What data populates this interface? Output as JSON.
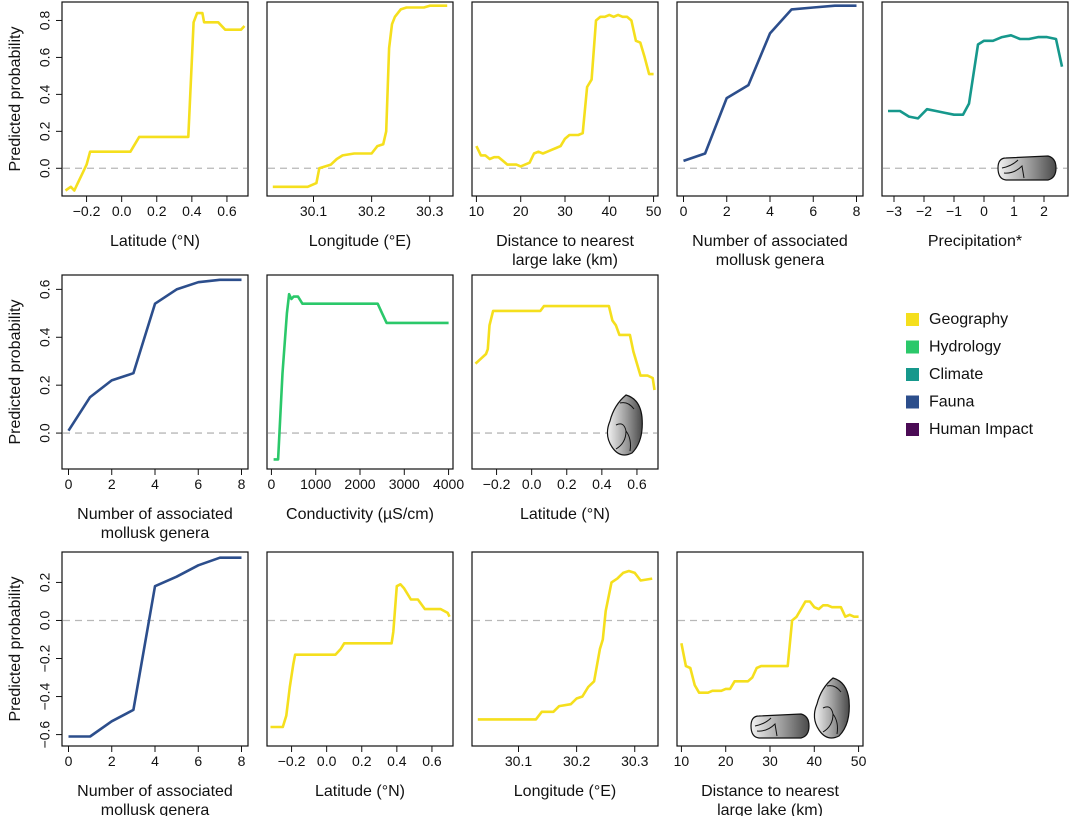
{
  "colors": {
    "Geography": "#F5DF1D",
    "Hydrology": "#2BC86A",
    "Climate": "#16988C",
    "Fauna": "#2C4E8C",
    "Human Impact": "#4B0B55"
  },
  "legend": [
    {
      "label": "Geography",
      "color": "#F5DF1D"
    },
    {
      "label": "Hydrology",
      "color": "#2BC86A"
    },
    {
      "label": "Climate",
      "color": "#16988C"
    },
    {
      "label": "Fauna",
      "color": "#2C4E8C"
    },
    {
      "label": "Human Impact",
      "color": "#4B0B55"
    }
  ],
  "chart_data": [
    {
      "type": "line",
      "row": 0,
      "col": 0,
      "category": "Geography",
      "xlabel": "Latitude (°N)",
      "ylabel": "Predicted probability",
      "xlim": [
        -0.34,
        0.72
      ],
      "ylim": [
        -0.15,
        0.9
      ],
      "xticks": [
        -0.2,
        0.0,
        0.2,
        0.4,
        0.6
      ],
      "xtick_labels": [
        "−0.2",
        "0.0",
        "0.2",
        "0.4",
        "0.6"
      ],
      "yticks": [
        0.0,
        0.2,
        0.4,
        0.6,
        0.8
      ],
      "ytick_labels": [
        "0.0",
        "0.2",
        "0.4",
        "0.6",
        "0.8"
      ],
      "x": [
        -0.32,
        -0.29,
        -0.27,
        -0.25,
        -0.22,
        -0.2,
        -0.18,
        0.05,
        0.1,
        0.38,
        0.41,
        0.43,
        0.46,
        0.47,
        0.55,
        0.59,
        0.68,
        0.7
      ],
      "y": [
        -0.12,
        -0.1,
        -0.12,
        -0.08,
        -0.02,
        0.02,
        0.09,
        0.09,
        0.17,
        0.17,
        0.79,
        0.84,
        0.84,
        0.79,
        0.79,
        0.75,
        0.75,
        0.77
      ],
      "snails": []
    },
    {
      "type": "line",
      "row": 0,
      "col": 1,
      "category": "Geography",
      "xlabel": "Longitude (°E)",
      "ylabel": "",
      "xlim": [
        30.02,
        30.34
      ],
      "ylim": [
        -0.15,
        0.9
      ],
      "xticks": [
        30.1,
        30.2,
        30.3
      ],
      "xtick_labels": [
        "30.1",
        "30.2",
        "30.3"
      ],
      "yticks": [],
      "ytick_labels": [],
      "x": [
        30.03,
        30.09,
        30.105,
        30.11,
        30.13,
        30.14,
        30.15,
        30.17,
        30.2,
        30.21,
        30.22,
        30.225,
        30.23,
        30.235,
        30.24,
        30.25,
        30.26,
        30.29,
        30.3,
        30.33
      ],
      "y": [
        -0.1,
        -0.1,
        -0.08,
        0.0,
        0.02,
        0.05,
        0.07,
        0.08,
        0.08,
        0.12,
        0.13,
        0.2,
        0.65,
        0.78,
        0.82,
        0.86,
        0.87,
        0.87,
        0.88,
        0.88
      ],
      "snails": []
    },
    {
      "type": "line",
      "row": 0,
      "col": 2,
      "category": "Geography",
      "xlabel": "Distance to nearest large lake (km)",
      "ylabel": "",
      "xlim": [
        9,
        51
      ],
      "ylim": [
        -0.15,
        0.9
      ],
      "xticks": [
        10,
        20,
        30,
        40,
        50
      ],
      "xtick_labels": [
        "10",
        "20",
        "30",
        "40",
        "50"
      ],
      "yticks": [],
      "ytick_labels": [],
      "x": [
        10,
        11,
        12,
        13,
        14,
        15,
        16,
        17,
        18,
        19,
        20,
        21,
        22,
        23,
        24,
        25,
        26,
        27,
        28,
        29,
        30,
        31,
        32,
        33,
        34,
        35,
        36,
        37,
        38,
        39,
        40,
        41,
        42,
        43,
        44,
        45,
        46,
        47,
        48,
        49,
        50
      ],
      "y": [
        0.12,
        0.07,
        0.07,
        0.05,
        0.06,
        0.06,
        0.04,
        0.02,
        0.02,
        0.02,
        0.01,
        0.02,
        0.03,
        0.08,
        0.09,
        0.08,
        0.09,
        0.1,
        0.11,
        0.12,
        0.16,
        0.18,
        0.18,
        0.18,
        0.19,
        0.44,
        0.48,
        0.8,
        0.82,
        0.82,
        0.83,
        0.82,
        0.83,
        0.82,
        0.82,
        0.8,
        0.69,
        0.68,
        0.6,
        0.51,
        0.51
      ],
      "snails": []
    },
    {
      "type": "line",
      "row": 0,
      "col": 3,
      "category": "Fauna",
      "xlabel": "Number of associated mollusk genera",
      "ylabel": "",
      "xlim": [
        -0.3,
        8.3
      ],
      "ylim": [
        -0.15,
        0.9
      ],
      "xticks": [
        0,
        2,
        4,
        6,
        8
      ],
      "xtick_labels": [
        "0",
        "2",
        "4",
        "6",
        "8"
      ],
      "yticks": [],
      "ytick_labels": [],
      "x": [
        0,
        1,
        2,
        3,
        4,
        5,
        6,
        7,
        8
      ],
      "y": [
        0.04,
        0.08,
        0.38,
        0.45,
        0.73,
        0.86,
        0.87,
        0.88,
        0.88
      ],
      "snails": []
    },
    {
      "type": "line",
      "row": 0,
      "col": 4,
      "category": "Climate",
      "xlabel": "Precipitation*",
      "ylabel": "",
      "xlim": [
        -3.4,
        2.8
      ],
      "ylim": [
        -0.15,
        0.9
      ],
      "xticks": [
        -3,
        -2,
        -1,
        0,
        1,
        2
      ],
      "xtick_labels": [
        "−3",
        "−2",
        "−1",
        "0",
        "1",
        "2"
      ],
      "yticks": [],
      "ytick_labels": [],
      "x": [
        -3.2,
        -2.8,
        -2.5,
        -2.2,
        -1.9,
        -1.6,
        -1.3,
        -1.0,
        -0.7,
        -0.5,
        -0.2,
        -0.1,
        0.0,
        0.3,
        0.6,
        0.9,
        1.2,
        1.5,
        1.8,
        2.1,
        2.4,
        2.6
      ],
      "y": [
        0.31,
        0.31,
        0.28,
        0.27,
        0.32,
        0.31,
        0.3,
        0.29,
        0.29,
        0.35,
        0.67,
        0.68,
        0.69,
        0.69,
        0.71,
        0.72,
        0.7,
        0.7,
        0.71,
        0.71,
        0.7,
        0.55
      ],
      "snails": [
        "elongated"
      ]
    },
    {
      "type": "line",
      "row": 1,
      "col": 0,
      "category": "Fauna",
      "xlabel": "Number of associated mollusk genera",
      "ylabel": "Predicted probability",
      "xlim": [
        -0.3,
        8.3
      ],
      "ylim": [
        -0.15,
        0.66
      ],
      "xticks": [
        0,
        2,
        4,
        6,
        8
      ],
      "xtick_labels": [
        "0",
        "2",
        "4",
        "6",
        "8"
      ],
      "yticks": [
        0.0,
        0.2,
        0.4,
        0.6
      ],
      "ytick_labels": [
        "0.0",
        "0.2",
        "0.4",
        "0.6"
      ],
      "x": [
        0,
        1,
        2,
        3,
        4,
        5,
        6,
        7,
        8
      ],
      "y": [
        0.01,
        0.15,
        0.22,
        0.25,
        0.54,
        0.6,
        0.63,
        0.64,
        0.64
      ],
      "snails": []
    },
    {
      "type": "line",
      "row": 1,
      "col": 1,
      "category": "Hydrology",
      "xlabel": "Conductivity (µS/cm)",
      "ylabel": "",
      "xlim": [
        -100,
        4100
      ],
      "ylim": [
        -0.15,
        0.66
      ],
      "xticks": [
        0,
        1000,
        2000,
        3000,
        4000
      ],
      "xtick_labels": [
        "0",
        "1000",
        "2000",
        "3000",
        "4000"
      ],
      "yticks": [],
      "ytick_labels": [],
      "x": [
        50,
        150,
        250,
        350,
        400,
        450,
        500,
        600,
        700,
        800,
        1000,
        1500,
        2000,
        2400,
        2500,
        2600,
        3000,
        4000
      ],
      "y": [
        -0.11,
        -0.11,
        0.25,
        0.5,
        0.58,
        0.56,
        0.57,
        0.57,
        0.54,
        0.54,
        0.54,
        0.54,
        0.54,
        0.54,
        0.5,
        0.46,
        0.46,
        0.46
      ],
      "snails": []
    },
    {
      "type": "line",
      "row": 1,
      "col": 2,
      "category": "Geography",
      "xlabel": "Latitude (°N)",
      "ylabel": "",
      "xlim": [
        -0.34,
        0.72
      ],
      "ylim": [
        -0.15,
        0.66
      ],
      "xticks": [
        -0.2,
        0.0,
        0.2,
        0.4,
        0.6
      ],
      "xtick_labels": [
        "−0.2",
        "0.0",
        "0.2",
        "0.4",
        "0.6"
      ],
      "yticks": [],
      "ytick_labels": [],
      "x": [
        -0.32,
        -0.29,
        -0.26,
        -0.25,
        -0.24,
        -0.22,
        -0.2,
        0.05,
        0.07,
        0.44,
        0.46,
        0.48,
        0.5,
        0.56,
        0.58,
        0.62,
        0.66,
        0.69,
        0.7
      ],
      "y": [
        0.29,
        0.31,
        0.33,
        0.35,
        0.45,
        0.51,
        0.51,
        0.51,
        0.53,
        0.53,
        0.47,
        0.45,
        0.41,
        0.41,
        0.34,
        0.24,
        0.24,
        0.23,
        0.18
      ],
      "snails": [
        "globose"
      ]
    },
    {
      "type": "line",
      "row": 2,
      "col": 0,
      "category": "Fauna",
      "xlabel": "Number of associated mollusk genera",
      "ylabel": "Predicted probability",
      "xlim": [
        -0.3,
        8.3
      ],
      "ylim": [
        -0.66,
        0.36
      ],
      "xticks": [
        0,
        2,
        4,
        6,
        8
      ],
      "xtick_labels": [
        "0",
        "2",
        "4",
        "6",
        "8"
      ],
      "yticks": [
        -0.6,
        -0.4,
        -0.2,
        0.0,
        0.2
      ],
      "ytick_labels": [
        "−0.6",
        "−0.4",
        "−0.2",
        "0.0",
        "0.2"
      ],
      "x": [
        0,
        1,
        2,
        3,
        4,
        5,
        6,
        7,
        8
      ],
      "y": [
        -0.61,
        -0.61,
        -0.53,
        -0.47,
        0.18,
        0.23,
        0.29,
        0.33,
        0.33
      ],
      "snails": []
    },
    {
      "type": "line",
      "row": 2,
      "col": 1,
      "category": "Geography",
      "xlabel": "Latitude (°N)",
      "ylabel": "",
      "xlim": [
        -0.34,
        0.72
      ],
      "ylim": [
        -0.66,
        0.36
      ],
      "xticks": [
        -0.2,
        0.0,
        0.2,
        0.4,
        0.6
      ],
      "xtick_labels": [
        "−0.2",
        "0.0",
        "0.2",
        "0.4",
        "0.6"
      ],
      "yticks": [],
      "ytick_labels": [],
      "x": [
        -0.32,
        -0.25,
        -0.23,
        -0.21,
        -0.19,
        -0.18,
        0.05,
        0.08,
        0.1,
        0.37,
        0.38,
        0.4,
        0.42,
        0.44,
        0.48,
        0.52,
        0.56,
        0.65,
        0.69,
        0.7
      ],
      "y": [
        -0.56,
        -0.56,
        -0.5,
        -0.35,
        -0.23,
        -0.18,
        -0.18,
        -0.15,
        -0.12,
        -0.12,
        -0.06,
        0.18,
        0.19,
        0.17,
        0.11,
        0.11,
        0.06,
        0.06,
        0.04,
        0.02
      ],
      "snails": []
    },
    {
      "type": "line",
      "row": 2,
      "col": 2,
      "category": "Geography",
      "xlabel": "Longitude (°E)",
      "ylabel": "",
      "xlim": [
        30.02,
        30.34
      ],
      "ylim": [
        -0.66,
        0.36
      ],
      "xticks": [
        30.1,
        30.2,
        30.3
      ],
      "xtick_labels": [
        "30.1",
        "30.2",
        "30.3"
      ],
      "yticks": [],
      "ytick_labels": [],
      "x": [
        30.03,
        30.13,
        30.14,
        30.16,
        30.17,
        30.19,
        30.2,
        30.21,
        30.22,
        30.23,
        30.24,
        30.245,
        30.25,
        30.26,
        30.27,
        30.28,
        30.29,
        30.3,
        30.31,
        30.33
      ],
      "y": [
        -0.52,
        -0.52,
        -0.48,
        -0.48,
        -0.45,
        -0.44,
        -0.41,
        -0.4,
        -0.35,
        -0.32,
        -0.15,
        -0.1,
        0.05,
        0.2,
        0.22,
        0.25,
        0.26,
        0.25,
        0.21,
        0.22
      ],
      "snails": []
    },
    {
      "type": "line",
      "row": 2,
      "col": 3,
      "category": "Geography",
      "xlabel": "Distance to nearest large lake (km)",
      "ylabel": "",
      "xlim": [
        9,
        51
      ],
      "ylim": [
        -0.66,
        0.36
      ],
      "xticks": [
        10,
        20,
        30,
        40,
        50
      ],
      "xtick_labels": [
        "10",
        "20",
        "30",
        "40",
        "50"
      ],
      "yticks": [],
      "ytick_labels": [],
      "x": [
        10,
        11,
        12,
        13,
        14,
        15,
        16,
        17,
        18,
        19,
        20,
        21,
        22,
        23,
        24,
        25,
        26,
        27,
        28,
        29,
        30,
        31,
        32,
        33,
        34,
        35,
        36,
        37,
        38,
        39,
        40,
        41,
        42,
        43,
        44,
        45,
        46,
        47,
        48,
        49,
        50
      ],
      "y": [
        -0.12,
        -0.24,
        -0.25,
        -0.34,
        -0.38,
        -0.38,
        -0.38,
        -0.37,
        -0.37,
        -0.37,
        -0.36,
        -0.36,
        -0.32,
        -0.32,
        -0.32,
        -0.32,
        -0.3,
        -0.25,
        -0.24,
        -0.24,
        -0.24,
        -0.24,
        -0.24,
        -0.24,
        -0.24,
        0.0,
        0.02,
        0.06,
        0.1,
        0.1,
        0.07,
        0.06,
        0.08,
        0.08,
        0.07,
        0.07,
        0.07,
        0.02,
        0.03,
        0.02,
        0.02
      ],
      "snails": [
        "elongated",
        "globose"
      ]
    }
  ]
}
